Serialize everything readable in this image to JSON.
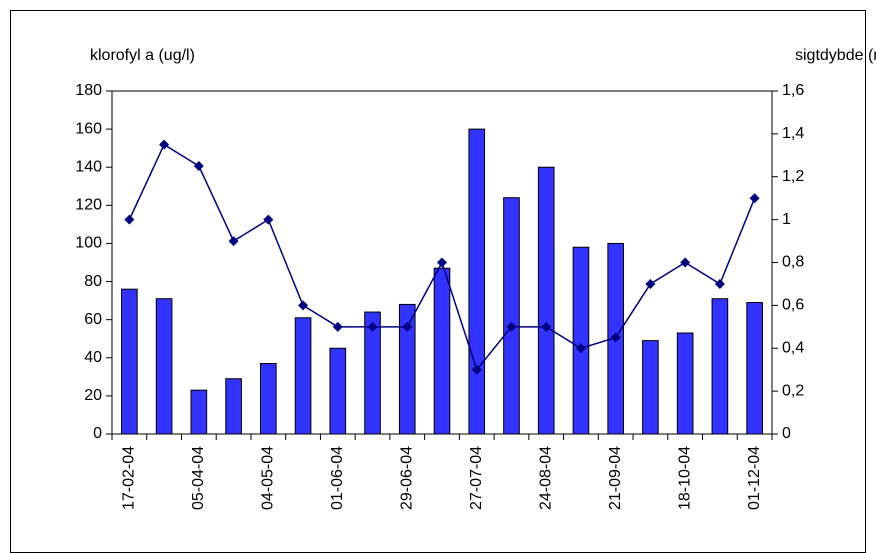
{
  "chart_data": {
    "type": "bar-line",
    "y_label": "klorofyl a (ug/l)",
    "y2_label": "sigtdybde (m)",
    "categories": [
      "17-02-04",
      null,
      "05-04-04",
      null,
      "04-05-04",
      null,
      "01-06-04",
      null,
      "29-06-04",
      null,
      "27-07-04",
      null,
      "24-08-04",
      null,
      "21-09-04",
      null,
      "18-10-04",
      null,
      "01-12-04"
    ],
    "series": [
      {
        "type": "bar",
        "color": "#3333ff",
        "values": [
          76,
          71,
          23,
          29,
          37,
          61,
          45,
          64,
          68,
          87,
          160,
          124,
          140,
          98,
          100,
          49,
          53,
          71,
          69
        ]
      },
      {
        "type": "line",
        "axis": "y2",
        "color": "#000080",
        "values": [
          1.0,
          1.35,
          1.25,
          0.9,
          1.0,
          0.6,
          0.5,
          0.5,
          0.5,
          0.8,
          0.3,
          0.5,
          0.5,
          0.4,
          0.45,
          0.7,
          0.8,
          0.7,
          1.1
        ]
      }
    ],
    "ylim": [
      0,
      180
    ],
    "yticks": [
      0,
      20,
      40,
      60,
      80,
      100,
      120,
      140,
      160,
      180
    ],
    "y2lim": [
      0,
      1.6
    ],
    "y2ticks": [
      0,
      {
        "value": 0.2,
        "label": "0,2"
      },
      {
        "value": 0.4,
        "label": "0,4"
      },
      {
        "value": 0.6,
        "label": "0,6"
      },
      {
        "value": 0.8,
        "label": "0,8"
      },
      1,
      {
        "value": 1.2,
        "label": "1,2"
      },
      {
        "value": 1.4,
        "label": "1,4"
      },
      {
        "value": 1.6,
        "label": "1,6"
      }
    ]
  }
}
